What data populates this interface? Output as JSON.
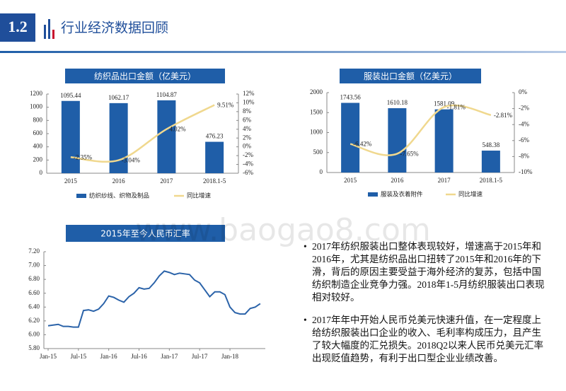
{
  "header": {
    "number": "1.2",
    "title": "行业经济数据回顾"
  },
  "watermark": "www.baogao8.com",
  "bullets": [
    "2017年纺织服装出口整体表现较好，增速高于2015年和2016年，尤其是纺织品出口扭转了2015年和2016年的下滑，背后的原因主要受益于海外经济的复苏，包括中国纺织制造企业竞争力强。2018年1-5月纺织服装出口表现相对较好。",
    "2017年年中开始人民币兑美元快速升值，在一定程度上给纺织服装出口企业的收入、毛利率构成压力，且产生了较大幅度的汇兑损失。2018Q2以来人民币兑美元汇率出现贬值趋势，有利于出口型企业业绩改善。"
  ],
  "chart_data": [
    {
      "type": "bar",
      "title": "纺织品出口金额（亿美元）",
      "categories": [
        "2015",
        "2016",
        "2017",
        "2018.1-5"
      ],
      "series": [
        {
          "name": "纺织纱线、织物及制品",
          "color": "#1f5ea8",
          "values": [
            1095.44,
            1062.17,
            1104.87,
            476.23
          ]
        },
        {
          "name": "同比增速",
          "color": "#f0d88e",
          "type": "line",
          "axis": "y2",
          "values": [
            -2.35,
            -3.04,
            4.02,
            9.51
          ],
          "value_labels": [
            "-2.35%",
            "-3.04%",
            "4.02%",
            "9.51%"
          ]
        }
      ],
      "ylim": [
        0,
        1200
      ],
      "yticks": [
        0,
        200,
        400,
        600,
        800,
        1000,
        1200
      ],
      "y2lim": [
        -6,
        12
      ],
      "y2ticks": [
        {
          "value": -6,
          "label": "-6%"
        },
        {
          "value": -4,
          "label": "-4%"
        },
        {
          "value": -2,
          "label": "-2%"
        },
        {
          "value": 0,
          "label": "0%"
        },
        {
          "value": 2,
          "label": "2%"
        },
        {
          "value": 4,
          "label": "4%"
        },
        {
          "value": 6,
          "label": "6%"
        },
        {
          "value": 8,
          "label": "8%"
        },
        {
          "value": 10,
          "label": "10%"
        },
        {
          "value": 12,
          "label": "12%"
        }
      ]
    },
    {
      "type": "bar",
      "title": "服装出口金额（亿美元）",
      "categories": [
        "2015",
        "2016",
        "2017",
        "2018.1-5"
      ],
      "series": [
        {
          "name": "服装及衣着附件",
          "color": "#1f5ea8",
          "values": [
            1743.56,
            1610.18,
            1581.09,
            548.38
          ]
        },
        {
          "name": "同比增速",
          "color": "#f0d88e",
          "type": "line",
          "axis": "y2",
          "values": [
            -6.42,
            -7.65,
            -1.81,
            -2.81
          ],
          "value_labels": [
            "-6.42%",
            "-7.65%",
            "-1.81%",
            "-2.81%"
          ]
        }
      ],
      "ylim": [
        0,
        2000
      ],
      "yticks": [
        0,
        500,
        1000,
        1500,
        2000
      ],
      "y2lim": [
        -10,
        0
      ],
      "y2ticks": [
        {
          "value": -10,
          "label": "-10%"
        },
        {
          "value": -8,
          "label": "-8%"
        },
        {
          "value": -6,
          "label": "-6%"
        },
        {
          "value": -4,
          "label": "-4%"
        },
        {
          "value": -2,
          "label": "-2%"
        },
        {
          "value": 0,
          "label": "0%"
        }
      ]
    },
    {
      "type": "line",
      "title": "2015年至今人民币汇率",
      "color": "#2b63a9",
      "x": [
        "2015-01",
        "2015-02",
        "2015-03",
        "2015-04",
        "2015-05",
        "2015-06",
        "2015-07",
        "2015-08",
        "2015-09",
        "2015-10",
        "2015-11",
        "2015-12",
        "2016-01",
        "2016-02",
        "2016-03",
        "2016-04",
        "2016-05",
        "2016-06",
        "2016-07",
        "2016-08",
        "2016-09",
        "2016-10",
        "2016-11",
        "2016-12",
        "2017-01",
        "2017-02",
        "2017-03",
        "2017-04",
        "2017-05",
        "2017-06",
        "2017-07",
        "2017-08",
        "2017-09",
        "2017-10",
        "2017-11",
        "2017-12",
        "2018-01",
        "2018-02",
        "2018-03",
        "2018-04",
        "2018-05",
        "2018-06",
        "2018-07"
      ],
      "values": [
        6.13,
        6.14,
        6.15,
        6.12,
        6.12,
        6.11,
        6.11,
        6.35,
        6.36,
        6.34,
        6.37,
        6.45,
        6.56,
        6.54,
        6.5,
        6.47,
        6.55,
        6.6,
        6.68,
        6.66,
        6.67,
        6.75,
        6.85,
        6.92,
        6.9,
        6.87,
        6.89,
        6.88,
        6.87,
        6.79,
        6.75,
        6.65,
        6.55,
        6.62,
        6.62,
        6.58,
        6.4,
        6.32,
        6.3,
        6.3,
        6.38,
        6.4,
        6.45
      ],
      "xlim": [
        "2015-01",
        "2018-08"
      ],
      "xticks": [
        {
          "value": "2015-01",
          "label": "Jan-15"
        },
        {
          "value": "2015-07",
          "label": "Jul-15"
        },
        {
          "value": "2016-01",
          "label": "Jan-16"
        },
        {
          "value": "2016-07",
          "label": "Jul-16"
        },
        {
          "value": "2017-01",
          "label": "Jan-17"
        },
        {
          "value": "2017-07",
          "label": "Jul-17"
        },
        {
          "value": "2018-01",
          "label": "Jan-18"
        }
      ],
      "ylim": [
        5.8,
        7.2
      ],
      "yticks": [
        {
          "value": 5.8,
          "label": "5.80"
        },
        {
          "value": 6.0,
          "label": "6.00"
        },
        {
          "value": 6.2,
          "label": "6.20"
        },
        {
          "value": 6.4,
          "label": "6.40"
        },
        {
          "value": 6.6,
          "label": "6.60"
        },
        {
          "value": 6.8,
          "label": "6.80"
        },
        {
          "value": 7.0,
          "label": "7.00"
        },
        {
          "value": 7.2,
          "label": "7.20"
        }
      ]
    }
  ]
}
